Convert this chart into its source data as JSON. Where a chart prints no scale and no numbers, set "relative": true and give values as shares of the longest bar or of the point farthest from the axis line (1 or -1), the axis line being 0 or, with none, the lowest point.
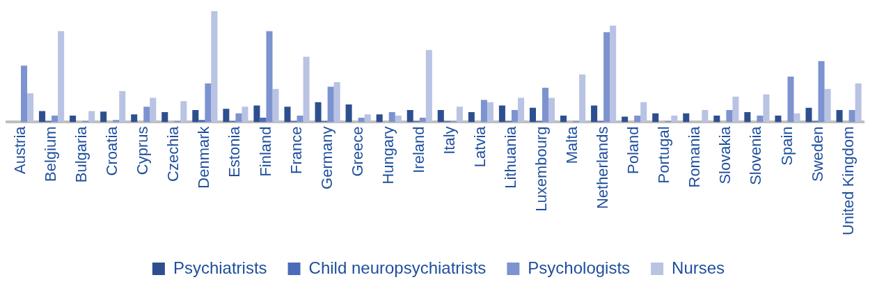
{
  "chart_data": {
    "type": "bar",
    "relative": true,
    "legend": "bottom",
    "grid": false,
    "categories": [
      "Austria",
      "Belgium",
      "Bulgaria",
      "Croatia",
      "Cyprus",
      "Czechia",
      "Denmark",
      "Estonia",
      "Finland",
      "France",
      "Germany",
      "Greece",
      "Hungary",
      "Ireland",
      "Italy",
      "Latvia",
      "Lithuania",
      "Luxembourg",
      "Malta",
      "Netherlands",
      "Poland",
      "Portugal",
      "Romania",
      "Slovakia",
      "Slovenia",
      "Spain",
      "Sweden",
      "United Kingdom"
    ],
    "series": [
      {
        "name": "Psychiatrists",
        "color": "#2e4f8f",
        "values": [
          0,
          0.1,
          0.06,
          0.095,
          0.07,
          0.09,
          0.11,
          0.12,
          0.15,
          0.14,
          0.18,
          0.16,
          0.07,
          0.11,
          0.11,
          0.09,
          0.15,
          0.13,
          0.06,
          0.15,
          0.05,
          0.08,
          0.08,
          0.06,
          0.09,
          0.06,
          0.13,
          0.11
        ]
      },
      {
        "name": "Child neuropsychiatrists",
        "color": "#4a6bb8",
        "values": [
          0,
          0.01,
          0,
          0,
          0,
          0,
          0.02,
          0.01,
          0.04,
          0.01,
          0.01,
          0,
          0,
          0.01,
          0.01,
          0,
          0.01,
          0.01,
          0,
          0.01,
          0,
          0,
          0,
          0,
          0,
          0,
          0.01,
          0
        ]
      },
      {
        "name": "Psychologists",
        "color": "#7d93d0",
        "values": [
          0.51,
          0.06,
          0.01,
          0.02,
          0.14,
          0.01,
          0.35,
          0.08,
          0.82,
          0.06,
          0.32,
          0.04,
          0.09,
          0.04,
          0.01,
          0.2,
          0.11,
          0.31,
          0.01,
          0.81,
          0.06,
          0.01,
          0,
          0.11,
          0.06,
          0.41,
          0.55,
          0.11
        ]
      },
      {
        "name": "Nurses",
        "color": "#b9c3e3",
        "values": [
          0.26,
          0.82,
          0.1,
          0.28,
          0.22,
          0.19,
          1,
          0.14,
          0.3,
          0.59,
          0.36,
          0.07,
          0.06,
          0.65,
          0.14,
          0.18,
          0.22,
          0.22,
          0.43,
          0.87,
          0.18,
          0.06,
          0.11,
          0.23,
          0.25,
          0.08,
          0.3,
          0.35
        ]
      }
    ]
  }
}
